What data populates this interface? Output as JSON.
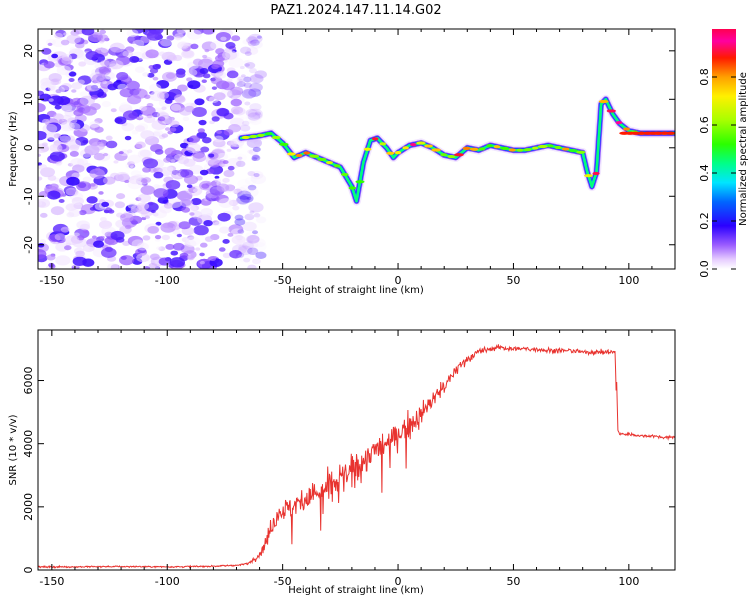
{
  "title": "PAZ1.2024.147.11.14.G02",
  "chart_data": [
    {
      "type": "heatmap",
      "xlabel": "Height of straight line (km)",
      "ylabel": "Frequency (Hz)",
      "xlim": [
        -156,
        120
      ],
      "ylim": [
        -25,
        24.5
      ],
      "xticks": [
        -150,
        -100,
        -50,
        0,
        50,
        100
      ],
      "yticks": [
        -20,
        -10,
        0,
        10,
        20
      ],
      "colorbar": {
        "label": "Normalized spectral amplitude",
        "range": [
          0,
          1
        ],
        "ticks": [
          "0.0",
          "0.2",
          "0.4",
          "0.6",
          "0.8"
        ],
        "colormap": "gist_ncar-like (white-violet-blue-cyan-green-yellow-red-magenta)"
      },
      "noise_region": {
        "x": [
          -156,
          -65
        ],
        "amplitude": "low (0.0-0.2)"
      },
      "ridge": {
        "description": "frequency of maximum spectral amplitude vs height",
        "x": [
          -68,
          -60,
          -55,
          -50,
          -45,
          -40,
          -35,
          -30,
          -25,
          -20,
          -18,
          -15,
          -12,
          -9,
          -5,
          -2,
          0,
          5,
          10,
          15,
          20,
          25,
          30,
          35,
          40,
          45,
          50,
          55,
          60,
          65,
          70,
          75,
          80,
          82,
          84,
          86,
          88,
          90,
          93,
          96,
          100,
          105,
          110,
          115,
          120
        ],
        "frequency": [
          2.0,
          2.5,
          3.0,
          1.0,
          -2.0,
          -1.0,
          -2.0,
          -3.0,
          -4.0,
          -8.0,
          -11.0,
          -3.0,
          1.5,
          2.0,
          0.0,
          -2.0,
          -1.0,
          0.5,
          1.0,
          0.0,
          -1.5,
          -2.0,
          0.0,
          -0.5,
          0.5,
          0.0,
          -0.5,
          -0.5,
          0.0,
          0.5,
          0.0,
          -0.5,
          -1.0,
          -5.0,
          -8.0,
          -5.0,
          9.0,
          10.0,
          7.0,
          5.0,
          3.5,
          3.0,
          3.0,
          3.0,
          3.0
        ]
      }
    },
    {
      "type": "line",
      "xlabel": "Height of straight line (km)",
      "ylabel": "SNR (10 * v/v)",
      "xlim": [
        -156,
        120
      ],
      "ylim": [
        0,
        7600
      ],
      "xticks": [
        -150,
        -100,
        -50,
        0,
        50,
        100
      ],
      "yticks": [
        0,
        2000,
        4000,
        6000
      ],
      "series": [
        {
          "color": "#e8332f",
          "x": [
            -156,
            -140,
            -120,
            -100,
            -80,
            -70,
            -65,
            -60,
            -57,
            -55,
            -52,
            -50,
            -45,
            -40,
            -35,
            -30,
            -25,
            -20,
            -15,
            -10,
            -5,
            0,
            5,
            10,
            15,
            20,
            25,
            30,
            35,
            40,
            45,
            50,
            55,
            60,
            65,
            70,
            75,
            80,
            85,
            90,
            94,
            95,
            96,
            100,
            105,
            110,
            115,
            120
          ],
          "values": [
            100,
            100,
            110,
            100,
            120,
            150,
            200,
            500,
            900,
            1400,
            1800,
            1900,
            2000,
            2300,
            2400,
            2600,
            2900,
            3100,
            3500,
            3800,
            4000,
            4300,
            4600,
            4900,
            5400,
            5800,
            6300,
            6700,
            6900,
            7000,
            7050,
            7000,
            7000,
            7000,
            6950,
            6950,
            6950,
            6900,
            6900,
            6900,
            6900,
            4500,
            4300,
            4300,
            4250,
            4250,
            4200,
            4200
          ],
          "noise_amplitude": [
            30,
            30,
            30,
            30,
            30,
            30,
            40,
            150,
            300,
            400,
            450,
            500,
            500,
            550,
            600,
            650,
            650,
            600,
            600,
            550,
            550,
            500,
            500,
            450,
            400,
            350,
            250,
            180,
            150,
            130,
            120,
            120,
            110,
            100,
            100,
            100,
            100,
            100,
            100,
            100,
            100,
            70,
            60,
            60,
            60,
            60,
            60,
            60
          ]
        }
      ]
    }
  ]
}
